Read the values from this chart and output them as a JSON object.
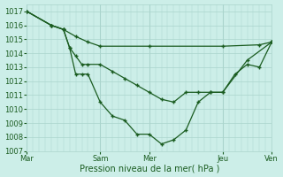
{
  "bg_color": "#cceee8",
  "line_color": "#1a5c20",
  "grid_color": "#aad4cc",
  "xlabel": "Pression niveau de la mer( hPa )",
  "ylim": [
    1007,
    1017.5
  ],
  "xlim": [
    0,
    40
  ],
  "yticks": [
    1007,
    1008,
    1009,
    1010,
    1011,
    1012,
    1013,
    1014,
    1015,
    1016,
    1017
  ],
  "xtick_labels": [
    "Mar",
    "Sam",
    "Mer",
    "Jeu",
    "Ven"
  ],
  "xtick_pos": [
    0,
    12,
    20,
    32,
    40
  ],
  "vlines": [
    0,
    12,
    20,
    32,
    40
  ],
  "flat_line_x": [
    0,
    4,
    6,
    8,
    10,
    12,
    20,
    32,
    38,
    40
  ],
  "flat_line_y": [
    1017.0,
    1016.0,
    1015.7,
    1015.2,
    1014.8,
    1014.5,
    1014.5,
    1014.5,
    1014.6,
    1014.8
  ],
  "mid_line_x": [
    0,
    4,
    6,
    7,
    8,
    9,
    10,
    12,
    14,
    16,
    18,
    20,
    22,
    24,
    26,
    28,
    30,
    32,
    36,
    40
  ],
  "mid_line_y": [
    1017.0,
    1016.0,
    1015.7,
    1014.4,
    1013.8,
    1013.2,
    1013.2,
    1013.2,
    1012.7,
    1012.2,
    1011.7,
    1011.2,
    1010.7,
    1010.5,
    1011.2,
    1011.2,
    1011.2,
    1011.2,
    1013.5,
    1014.8
  ],
  "deep_line_x": [
    0,
    4,
    6,
    7,
    8,
    9,
    10,
    12,
    14,
    16,
    18,
    20,
    22,
    24,
    26,
    28,
    30,
    32,
    34,
    36,
    38,
    40
  ],
  "deep_line_y": [
    1017.0,
    1016.0,
    1015.7,
    1014.4,
    1012.5,
    1012.5,
    1012.5,
    1010.5,
    1009.5,
    1009.2,
    1008.2,
    1008.2,
    1007.5,
    1007.8,
    1008.5,
    1010.5,
    1011.2,
    1011.2,
    1012.5,
    1013.2,
    1013.0,
    1014.8
  ]
}
